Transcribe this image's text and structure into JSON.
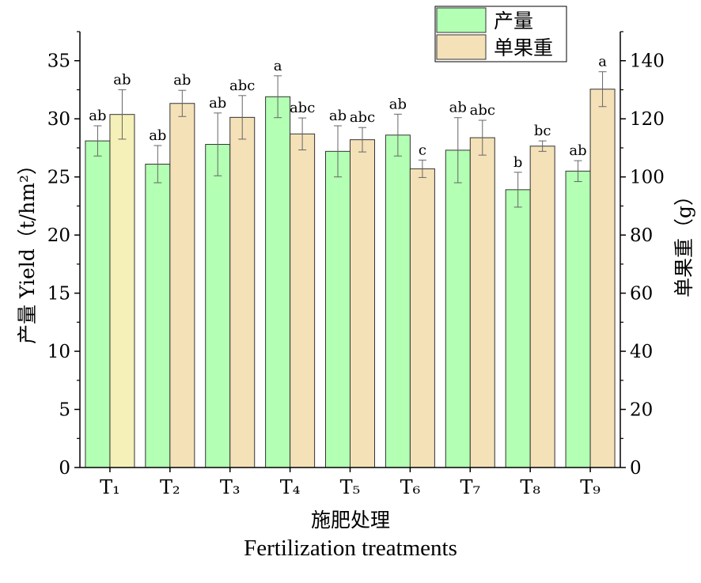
{
  "chart_data": {
    "type": "bar",
    "categories": [
      "T₁",
      "T₂",
      "T₃",
      "T₄",
      "T₅",
      "T₆",
      "T₇",
      "T₈",
      "T₉"
    ],
    "xlabel_cn": "施肥处理",
    "xlabel_en": "Fertilization treatments",
    "ylabel_left_cn": "产量",
    "ylabel_left_en": "Yield（t/hm²）",
    "ylabel_right": "单果重（g）",
    "ylim_left": [
      0,
      37.5
    ],
    "ylim_right": [
      0,
      150
    ],
    "yticks_left": [
      "0",
      "5",
      "10",
      "15",
      "20",
      "25",
      "30",
      "35"
    ],
    "yticks_right": [
      "0",
      "20",
      "40",
      "60",
      "80",
      "100",
      "120",
      "140"
    ],
    "legend_position": "top-right",
    "series": [
      {
        "name": "产量",
        "axis": "left",
        "color": "#b3ffb3",
        "values": [
          28.1,
          26.1,
          27.8,
          31.9,
          27.2,
          28.6,
          27.3,
          23.9,
          25.5
        ],
        "errors": [
          1.3,
          1.6,
          2.7,
          1.8,
          2.2,
          1.8,
          2.8,
          1.5,
          0.9
        ],
        "labels": [
          "ab",
          "ab",
          "ab",
          "a",
          "ab",
          "ab",
          "ab",
          "b",
          "ab"
        ]
      },
      {
        "name": "单果重",
        "axis": "right",
        "color": "#f5e1b8",
        "values": [
          121.5,
          125.3,
          120.5,
          114.8,
          112.8,
          102.8,
          113.5,
          110.6,
          130.2
        ],
        "errors": [
          8.5,
          4.5,
          7.5,
          5.5,
          4.2,
          3.0,
          6.0,
          1.8,
          6.0
        ],
        "labels": [
          "ab",
          "ab",
          "abc",
          "abc",
          "abc",
          "c",
          "abc",
          "bc",
          "a"
        ]
      }
    ]
  }
}
